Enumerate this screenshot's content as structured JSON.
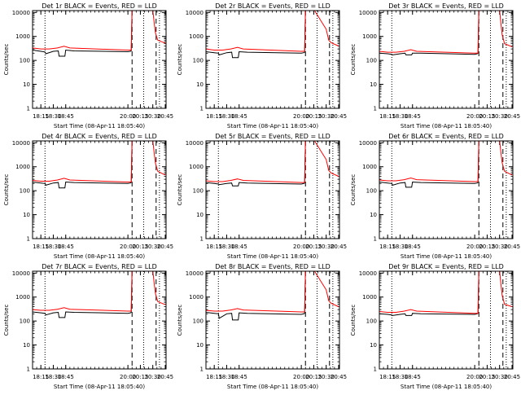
{
  "chart_data": [
    {
      "type": "line",
      "title": "Det 1r BLACK = Events, RED = LLD",
      "xlabel": "Start Time (08-Apr-11 18:05:40)",
      "ylabel": "Counts/sec",
      "yscale": "log",
      "xlim": [
        "18:05",
        "20:46"
      ],
      "ylim": [
        1,
        12000
      ],
      "xticks": [
        "18:15",
        "18:30",
        "18:45",
        "20:00",
        "20:15",
        "20:30",
        "20:45"
      ],
      "yticks": [
        "1",
        "10",
        "100",
        "1000",
        "10000"
      ],
      "dotted_lines": [
        "18:20",
        "20:19",
        "20:38"
      ],
      "dashed_lines": [
        "20:05",
        "20:34"
      ],
      "series": [
        {
          "color": "#000000",
          "x": [
            "18:05",
            "18:15",
            "18:20",
            "18:21",
            "18:30",
            "18:36",
            "18:37",
            "18:44",
            "18:45",
            "18:55",
            "20:00",
            "20:03",
            "20:04",
            "20:05",
            "20:07",
            "20:08"
          ],
          "y": [
            270,
            240,
            225,
            190,
            240,
            250,
            150,
            150,
            270,
            250,
            230,
            240,
            250,
            12000,
            12000,
            12000
          ]
        },
        {
          "color": "#ff0000",
          "x": [
            "18:05",
            "18:15",
            "18:25",
            "18:35",
            "18:43",
            "18:50",
            "20:00",
            "20:04",
            "20:05",
            "20:07",
            "20:30",
            "20:33",
            "20:36",
            "20:45"
          ],
          "y": [
            330,
            300,
            300,
            330,
            390,
            330,
            270,
            270,
            12000,
            12000,
            12000,
            1500,
            700,
            520
          ]
        }
      ]
    },
    {
      "type": "line",
      "title": "Det 2r BLACK = Events, RED = LLD",
      "xlabel": "Start Time (08-Apr-11 18:05:40)",
      "ylabel": "Counts/sec",
      "yscale": "log",
      "xlim": [
        "18:05",
        "20:46"
      ],
      "ylim": [
        1,
        12000
      ],
      "xticks": [
        "18:15",
        "18:30",
        "18:45",
        "20:00",
        "20:15",
        "20:30",
        "20:45"
      ],
      "yticks": [
        "1",
        "10",
        "100",
        "1000",
        "10000"
      ],
      "dotted_lines": [
        "18:20",
        "20:19",
        "20:38"
      ],
      "dashed_lines": [
        "20:05",
        "20:34"
      ],
      "series": [
        {
          "color": "#000000",
          "x": [
            "18:05",
            "18:15",
            "18:20",
            "18:21",
            "18:30",
            "18:36",
            "18:37",
            "18:44",
            "18:45",
            "18:55",
            "20:00",
            "20:03",
            "20:04",
            "20:05",
            "20:07",
            "20:08"
          ],
          "y": [
            230,
            210,
            200,
            170,
            210,
            220,
            130,
            130,
            230,
            220,
            200,
            210,
            220,
            12000,
            12000,
            12000
          ]
        },
        {
          "color": "#ff0000",
          "x": [
            "18:05",
            "18:15",
            "18:25",
            "18:35",
            "18:43",
            "18:50",
            "20:00",
            "20:04",
            "20:05",
            "20:07",
            "20:16",
            "20:30",
            "20:33",
            "20:36",
            "20:45"
          ],
          "y": [
            300,
            270,
            270,
            300,
            350,
            300,
            240,
            240,
            12000,
            12000,
            12000,
            2000,
            700,
            550,
            400
          ]
        }
      ]
    },
    {
      "type": "line",
      "title": "Det 3r BLACK = Events, RED = LLD",
      "xlabel": "Start Time (08-Apr-11 18:05:40)",
      "ylabel": "Counts/sec",
      "yscale": "log",
      "xlim": [
        "18:05",
        "20:46"
      ],
      "ylim": [
        1,
        12000
      ],
      "xticks": [
        "18:15",
        "18:30",
        "18:45",
        "20:00",
        "20:15",
        "20:30",
        "20:45"
      ],
      "yticks": [
        "1",
        "10",
        "100",
        "1000",
        "10000"
      ],
      "dotted_lines": [
        "18:20",
        "20:19",
        "20:38"
      ],
      "dashed_lines": [
        "20:05",
        "20:34"
      ],
      "series": [
        {
          "color": "#000000",
          "x": [
            "18:05",
            "18:15",
            "18:20",
            "18:21",
            "18:30",
            "18:36",
            "18:37",
            "18:44",
            "18:45",
            "18:55",
            "20:00",
            "20:03",
            "20:04",
            "20:05",
            "20:07",
            "20:08"
          ],
          "y": [
            200,
            190,
            180,
            170,
            190,
            200,
            170,
            170,
            200,
            200,
            180,
            190,
            200,
            12000,
            12000,
            12000
          ]
        },
        {
          "color": "#ff0000",
          "x": [
            "18:05",
            "18:15",
            "18:25",
            "18:35",
            "18:43",
            "18:50",
            "20:00",
            "20:04",
            "20:05",
            "20:07",
            "20:30",
            "20:33",
            "20:36",
            "20:45"
          ],
          "y": [
            240,
            220,
            220,
            240,
            280,
            240,
            200,
            200,
            12000,
            12000,
            12000,
            1200,
            500,
            370
          ]
        }
      ]
    },
    {
      "type": "line",
      "title": "Det 4r BLACK = Events, RED = LLD",
      "xlabel": "Start Time (08-Apr-11 18:05:40)",
      "ylabel": "Counts/sec",
      "yscale": "log",
      "xlim": [
        "18:05",
        "20:46"
      ],
      "ylim": [
        1,
        12000
      ],
      "xticks": [
        "18:15",
        "18:30",
        "18:45",
        "20:00",
        "20:15",
        "20:30",
        "20:45"
      ],
      "yticks": [
        "1",
        "10",
        "100",
        "1000",
        "10000"
      ],
      "dotted_lines": [
        "18:20",
        "20:19",
        "20:38"
      ],
      "dashed_lines": [
        "20:05",
        "20:34"
      ],
      "series": [
        {
          "color": "#000000",
          "x": [
            "18:05",
            "18:15",
            "18:20",
            "18:21",
            "18:30",
            "18:36",
            "18:37",
            "18:44",
            "18:45",
            "18:55",
            "20:00",
            "20:03",
            "20:04",
            "20:05",
            "20:07",
            "20:08"
          ],
          "y": [
            230,
            210,
            200,
            170,
            210,
            220,
            130,
            130,
            230,
            220,
            200,
            210,
            220,
            12000,
            12000,
            12000
          ]
        },
        {
          "color": "#ff0000",
          "x": [
            "18:05",
            "18:15",
            "18:25",
            "18:35",
            "18:43",
            "18:50",
            "20:00",
            "20:04",
            "20:05",
            "20:07",
            "20:30",
            "20:33",
            "20:36",
            "20:45"
          ],
          "y": [
            270,
            250,
            250,
            280,
            330,
            280,
            230,
            230,
            12000,
            12000,
            12000,
            1500,
            650,
            450
          ]
        }
      ]
    },
    {
      "type": "line",
      "title": "Det 5r BLACK = Events, RED = LLD",
      "xlabel": "Start Time (08-Apr-11 18:05:40)",
      "ylabel": "Counts/sec",
      "yscale": "log",
      "xlim": [
        "18:05",
        "20:46"
      ],
      "ylim": [
        1,
        12000
      ],
      "xticks": [
        "18:15",
        "18:30",
        "18:45",
        "20:00",
        "20:15",
        "20:30",
        "20:45"
      ],
      "yticks": [
        "1",
        "10",
        "100",
        "1000",
        "10000"
      ],
      "dotted_lines": [
        "18:20",
        "20:19",
        "20:38"
      ],
      "dashed_lines": [
        "20:05",
        "20:34"
      ],
      "series": [
        {
          "color": "#000000",
          "x": [
            "18:05",
            "18:15",
            "18:20",
            "18:21",
            "18:30",
            "18:36",
            "18:37",
            "18:44",
            "18:45",
            "18:55",
            "20:00",
            "20:03",
            "20:04",
            "20:05",
            "20:07",
            "20:08"
          ],
          "y": [
            220,
            200,
            190,
            180,
            200,
            210,
            160,
            160,
            220,
            210,
            190,
            200,
            210,
            12000,
            12000,
            12000
          ]
        },
        {
          "color": "#ff0000",
          "x": [
            "18:05",
            "18:15",
            "18:25",
            "18:35",
            "18:43",
            "18:50",
            "20:00",
            "20:04",
            "20:05",
            "20:07",
            "20:16",
            "20:30",
            "20:33",
            "20:36",
            "20:45"
          ],
          "y": [
            260,
            240,
            240,
            270,
            310,
            270,
            220,
            220,
            12000,
            12000,
            12000,
            2000,
            700,
            550,
            400
          ]
        }
      ]
    },
    {
      "type": "line",
      "title": "Det 6r BLACK = Events, RED = LLD",
      "xlabel": "Start Time (08-Apr-11 18:05:40)",
      "ylabel": "Counts/sec",
      "yscale": "log",
      "xlim": [
        "18:05",
        "20:46"
      ],
      "ylim": [
        1,
        12000
      ],
      "xticks": [
        "18:15",
        "18:30",
        "18:45",
        "20:00",
        "20:15",
        "20:30",
        "20:45"
      ],
      "yticks": [
        "1",
        "10",
        "100",
        "1000",
        "10000"
      ],
      "dotted_lines": [
        "18:20",
        "20:19",
        "20:38"
      ],
      "dashed_lines": [
        "20:05",
        "20:34"
      ],
      "series": [
        {
          "color": "#000000",
          "x": [
            "18:05",
            "18:15",
            "18:20",
            "18:21",
            "18:30",
            "18:36",
            "18:37",
            "18:44",
            "18:45",
            "18:55",
            "20:00",
            "20:03",
            "20:04",
            "20:05",
            "20:07",
            "20:08"
          ],
          "y": [
            230,
            210,
            200,
            170,
            210,
            220,
            140,
            140,
            230,
            220,
            200,
            210,
            220,
            12000,
            12000,
            12000
          ]
        },
        {
          "color": "#ff0000",
          "x": [
            "18:05",
            "18:15",
            "18:25",
            "18:35",
            "18:43",
            "18:50",
            "20:00",
            "20:04",
            "20:05",
            "20:07",
            "20:30",
            "20:33",
            "20:36",
            "20:45"
          ],
          "y": [
            280,
            260,
            260,
            290,
            340,
            290,
            240,
            240,
            12000,
            12000,
            12000,
            1500,
            650,
            450
          ]
        }
      ]
    },
    {
      "type": "line",
      "title": "Det 7r BLACK = Events, RED = LLD",
      "xlabel": "Start Time (08-Apr-11 18:05:40)",
      "ylabel": "Counts/sec",
      "yscale": "log",
      "xlim": [
        "18:05",
        "20:46"
      ],
      "ylim": [
        1,
        12000
      ],
      "xticks": [
        "18:15",
        "18:30",
        "18:45",
        "20:00",
        "20:15",
        "20:30",
        "20:45"
      ],
      "yticks": [
        "1",
        "10",
        "100",
        "1000",
        "10000"
      ],
      "dotted_lines": [
        "18:20",
        "20:19",
        "20:38"
      ],
      "dashed_lines": [
        "20:05",
        "20:34"
      ],
      "series": [
        {
          "color": "#000000",
          "x": [
            "18:05",
            "18:15",
            "18:20",
            "18:21",
            "18:30",
            "18:36",
            "18:37",
            "18:44",
            "18:45",
            "18:55",
            "20:00",
            "20:03",
            "20:04",
            "20:05",
            "20:07",
            "20:08"
          ],
          "y": [
            240,
            220,
            210,
            180,
            220,
            230,
            140,
            140,
            240,
            230,
            210,
            220,
            230,
            12000,
            12000,
            12000
          ]
        },
        {
          "color": "#ff0000",
          "x": [
            "18:05",
            "18:15",
            "18:25",
            "18:35",
            "18:43",
            "18:50",
            "20:00",
            "20:04",
            "20:05",
            "20:07",
            "20:30",
            "20:33",
            "20:36",
            "20:45"
          ],
          "y": [
            300,
            280,
            280,
            310,
            360,
            310,
            260,
            260,
            12000,
            12000,
            12000,
            1500,
            650,
            480
          ]
        }
      ]
    },
    {
      "type": "line",
      "title": "Det 8r BLACK = Events, RED = LLD",
      "xlabel": "Start Time (08-Apr-11 18:05:40)",
      "ylabel": "Counts/sec",
      "yscale": "log",
      "xlim": [
        "18:05",
        "20:46"
      ],
      "ylim": [
        1,
        12000
      ],
      "xticks": [
        "18:15",
        "18:30",
        "18:45",
        "20:00",
        "20:15",
        "20:30",
        "20:45"
      ],
      "yticks": [
        "1",
        "10",
        "100",
        "1000",
        "10000"
      ],
      "dotted_lines": [
        "18:20",
        "20:19",
        "20:38"
      ],
      "dashed_lines": [
        "20:05",
        "20:34"
      ],
      "series": [
        {
          "color": "#000000",
          "x": [
            "18:05",
            "18:15",
            "18:20",
            "18:21",
            "18:30",
            "18:36",
            "18:37",
            "18:44",
            "18:45",
            "18:55",
            "20:00",
            "20:03",
            "20:04",
            "20:05",
            "20:07",
            "20:08"
          ],
          "y": [
            230,
            210,
            200,
            130,
            200,
            210,
            110,
            110,
            220,
            210,
            190,
            200,
            210,
            12000,
            12000,
            12000
          ]
        },
        {
          "color": "#ff0000",
          "x": [
            "18:05",
            "18:15",
            "18:25",
            "18:35",
            "18:43",
            "18:50",
            "20:00",
            "20:04",
            "20:05",
            "20:07",
            "20:16",
            "20:30",
            "20:33",
            "20:36",
            "20:45"
          ],
          "y": [
            280,
            260,
            260,
            290,
            330,
            290,
            240,
            240,
            12000,
            12000,
            12000,
            2000,
            700,
            550,
            400
          ]
        }
      ]
    },
    {
      "type": "line",
      "title": "Det 9r BLACK = Events, RED = LLD",
      "xlabel": "Start Time (08-Apr-11 18:05:40)",
      "ylabel": "Counts/sec",
      "yscale": "log",
      "xlim": [
        "18:05",
        "20:46"
      ],
      "ylim": [
        1,
        12000
      ],
      "xticks": [
        "18:15",
        "18:30",
        "18:45",
        "20:00",
        "20:15",
        "20:30",
        "20:45"
      ],
      "yticks": [
        "1",
        "10",
        "100",
        "1000",
        "10000"
      ],
      "dotted_lines": [
        "18:20",
        "20:19",
        "20:38"
      ],
      "dashed_lines": [
        "20:05",
        "20:34"
      ],
      "series": [
        {
          "color": "#000000",
          "x": [
            "18:05",
            "18:15",
            "18:20",
            "18:21",
            "18:30",
            "18:36",
            "18:37",
            "18:44",
            "18:45",
            "18:55",
            "20:00",
            "20:03",
            "20:04",
            "20:05",
            "20:07",
            "20:08"
          ],
          "y": [
            200,
            190,
            180,
            170,
            190,
            200,
            170,
            170,
            210,
            200,
            190,
            200,
            210,
            12000,
            12000,
            12000
          ]
        },
        {
          "color": "#ff0000",
          "x": [
            "18:05",
            "18:15",
            "18:25",
            "18:35",
            "18:43",
            "18:50",
            "20:00",
            "20:04",
            "20:05",
            "20:07",
            "20:30",
            "20:33",
            "20:36",
            "20:45"
          ],
          "y": [
            250,
            230,
            230,
            260,
            300,
            260,
            210,
            210,
            12000,
            12000,
            12000,
            1200,
            500,
            400
          ]
        }
      ]
    }
  ]
}
